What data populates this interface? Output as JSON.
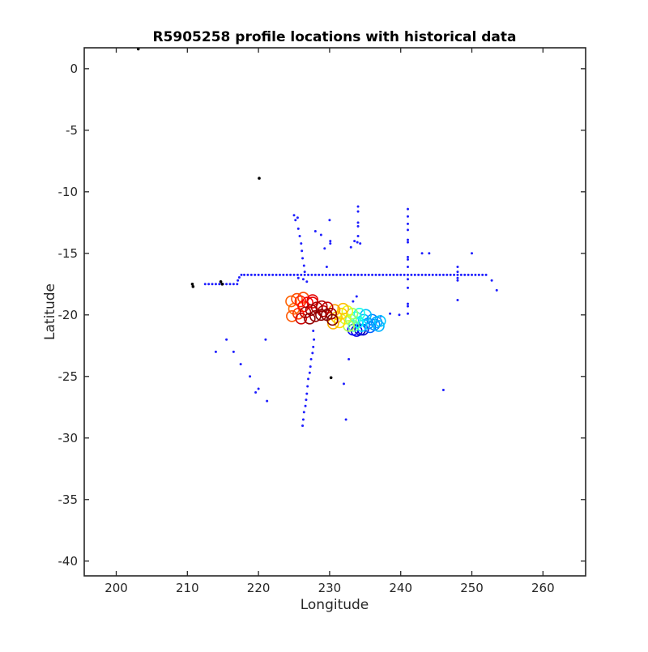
{
  "chart_data": {
    "type": "scatter",
    "title": "R5905258 profile locations with historical data",
    "xlabel": "Longitude",
    "ylabel": "Latitude",
    "xlim": [
      195.5,
      266
    ],
    "ylim": [
      -41.2,
      1.7
    ],
    "xticks": [
      200,
      210,
      220,
      230,
      240,
      250,
      260
    ],
    "yticks": [
      0,
      -5,
      -10,
      -15,
      -20,
      -25,
      -30,
      -35,
      -40
    ],
    "grid": false,
    "legend": "none",
    "series": [
      {
        "marker": "dot",
        "color": "#1f1fff",
        "points": [
          [
            212.5,
            -17.5
          ],
          [
            213,
            -17.5
          ],
          [
            213.5,
            -17.5
          ],
          [
            214,
            -17.5
          ],
          [
            214.5,
            -17.5
          ],
          [
            215,
            -17.5
          ],
          [
            215.5,
            -17.5
          ],
          [
            216,
            -17.5
          ],
          [
            216.5,
            -17.5
          ],
          [
            217,
            -17.5
          ],
          [
            217.1,
            -17.2
          ],
          [
            217.3,
            -16.95
          ],
          [
            217.6,
            -16.75
          ],
          [
            218,
            -16.75
          ],
          [
            218.5,
            -16.75
          ],
          [
            219,
            -16.75
          ],
          [
            219.5,
            -16.75
          ],
          [
            220,
            -16.75
          ],
          [
            220.5,
            -16.75
          ],
          [
            221,
            -16.75
          ],
          [
            221.5,
            -16.75
          ],
          [
            222,
            -16.75
          ],
          [
            222.5,
            -16.75
          ],
          [
            223,
            -16.75
          ],
          [
            223.5,
            -16.75
          ],
          [
            224,
            -16.75
          ],
          [
            224.5,
            -16.75
          ],
          [
            225,
            -16.75
          ],
          [
            225.5,
            -16.75
          ],
          [
            226,
            -16.75
          ],
          [
            226.5,
            -16.75
          ],
          [
            227,
            -16.75
          ],
          [
            227.5,
            -16.75
          ],
          [
            228,
            -16.75
          ],
          [
            228.5,
            -16.75
          ],
          [
            229,
            -16.75
          ],
          [
            229.5,
            -16.75
          ],
          [
            230,
            -16.75
          ],
          [
            230.5,
            -16.75
          ],
          [
            231,
            -16.75
          ],
          [
            231.5,
            -16.75
          ],
          [
            232,
            -16.75
          ],
          [
            232.5,
            -16.75
          ],
          [
            233,
            -16.75
          ],
          [
            233.5,
            -16.75
          ],
          [
            234,
            -16.75
          ],
          [
            234.5,
            -16.75
          ],
          [
            235,
            -16.75
          ],
          [
            235.5,
            -16.75
          ],
          [
            236,
            -16.75
          ],
          [
            236.5,
            -16.75
          ],
          [
            237,
            -16.75
          ],
          [
            237.5,
            -16.75
          ],
          [
            238,
            -16.75
          ],
          [
            238.5,
            -16.75
          ],
          [
            239,
            -16.75
          ],
          [
            239.5,
            -16.75
          ],
          [
            240,
            -16.75
          ],
          [
            240.5,
            -16.75
          ],
          [
            241,
            -16.75
          ],
          [
            241.5,
            -16.75
          ],
          [
            242,
            -16.75
          ],
          [
            242.5,
            -16.75
          ],
          [
            243,
            -16.75
          ],
          [
            243.5,
            -16.75
          ],
          [
            244,
            -16.75
          ],
          [
            244.5,
            -16.75
          ],
          [
            245,
            -16.75
          ],
          [
            245.5,
            -16.75
          ],
          [
            246,
            -16.75
          ],
          [
            246.5,
            -16.75
          ],
          [
            247,
            -16.75
          ],
          [
            247.5,
            -16.75
          ],
          [
            248,
            -16.75
          ],
          [
            248.5,
            -16.75
          ],
          [
            249,
            -16.75
          ],
          [
            249.5,
            -16.75
          ],
          [
            250,
            -16.75
          ],
          [
            250.5,
            -16.75
          ],
          [
            251,
            -16.75
          ],
          [
            251.5,
            -16.75
          ],
          [
            252,
            -16.75
          ],
          [
            225,
            -11.9
          ],
          [
            225.2,
            -12.3
          ],
          [
            225.5,
            -12.1
          ],
          [
            225.6,
            -13
          ],
          [
            225.8,
            -13.6
          ],
          [
            226,
            -14.2
          ],
          [
            226.1,
            -14.8
          ],
          [
            226.2,
            -15.4
          ],
          [
            226.4,
            -16
          ],
          [
            226.5,
            -16.5
          ],
          [
            226.8,
            -17.3
          ],
          [
            226.3,
            -17.1
          ],
          [
            225.6,
            -17.0
          ],
          [
            227.7,
            -21.3
          ],
          [
            227.8,
            -22.0
          ],
          [
            227.7,
            -22.6
          ],
          [
            227.6,
            -23.1
          ],
          [
            227.4,
            -23.6
          ],
          [
            227.3,
            -24.2
          ],
          [
            227.2,
            -24.7
          ],
          [
            227.0,
            -25.2
          ],
          [
            226.9,
            -25.8
          ],
          [
            226.8,
            -26.4
          ],
          [
            226.7,
            -26.9
          ],
          [
            226.6,
            -27.4
          ],
          [
            226.4,
            -27.9
          ],
          [
            226.3,
            -28.5
          ],
          [
            226.2,
            -29.0
          ],
          [
            241,
            -11.4
          ],
          [
            241,
            -12
          ],
          [
            241,
            -12.6
          ],
          [
            241,
            -13.1
          ],
          [
            241,
            -13.9
          ],
          [
            241,
            -14.1
          ],
          [
            241,
            -15.3
          ],
          [
            241,
            -15.5
          ],
          [
            241,
            -16.1
          ],
          [
            241,
            -17.1
          ],
          [
            241,
            -17.8
          ],
          [
            241,
            -19.1
          ],
          [
            241,
            -19.3
          ],
          [
            241,
            -19.9
          ],
          [
            239.8,
            -20.0
          ],
          [
            238.5,
            -19.9
          ],
          [
            237.2,
            -20.1
          ],
          [
            234,
            -11.2
          ],
          [
            234,
            -11.6
          ],
          [
            234,
            -12.5
          ],
          [
            234,
            -12.8
          ],
          [
            234,
            -13.6
          ],
          [
            233.9,
            -14.1
          ],
          [
            233.5,
            -14
          ],
          [
            234.3,
            -14.2
          ],
          [
            233,
            -14.5
          ],
          [
            233.8,
            -18.5
          ],
          [
            233.3,
            -18.9
          ],
          [
            230,
            -12.3
          ],
          [
            228,
            -13.2
          ],
          [
            228.8,
            -13.5
          ],
          [
            229.3,
            -14.6
          ],
          [
            229.6,
            -16.1
          ],
          [
            230.1,
            -14.0
          ],
          [
            230.1,
            -14.2
          ],
          [
            243,
            -15.0
          ],
          [
            244,
            -15.0
          ],
          [
            250,
            -15.0
          ],
          [
            248,
            -16.1
          ],
          [
            248,
            -16.5
          ],
          [
            248,
            -17.0
          ],
          [
            248,
            -17.2
          ],
          [
            248,
            -18.8
          ],
          [
            252.8,
            -17.2
          ],
          [
            253.5,
            -18.0
          ],
          [
            246,
            -26.1
          ],
          [
            214,
            -23.0
          ],
          [
            215.5,
            -22.0
          ],
          [
            216.5,
            -23.0
          ],
          [
            217.5,
            -24.0
          ],
          [
            218.8,
            -25.0
          ],
          [
            219.6,
            -26.3
          ],
          [
            220.0,
            -26.0
          ],
          [
            221.2,
            -27.0
          ],
          [
            221.0,
            -22.0
          ],
          [
            232.0,
            -25.6
          ],
          [
            232.7,
            -23.6
          ],
          [
            232.3,
            -28.5
          ]
        ]
      },
      {
        "marker": "dot",
        "color": "#000000",
        "points": [
          [
            203.1,
            1.6
          ],
          [
            220.1,
            -8.9
          ],
          [
            210.7,
            -17.5
          ],
          [
            210.8,
            -17.7
          ],
          [
            214.7,
            -17.3
          ],
          [
            214.9,
            -17.5
          ],
          [
            230.2,
            -25.1
          ]
        ]
      },
      {
        "marker": "open-circle",
        "colormap": "jet",
        "colormap_range": [
          0,
          1
        ],
        "points": [
          [
            224.6,
            -18.9,
            0.78
          ],
          [
            225.4,
            -18.7,
            0.8
          ],
          [
            226.3,
            -18.6,
            0.8
          ],
          [
            225.0,
            -19.5,
            0.77
          ],
          [
            224.7,
            -20.1,
            0.79
          ],
          [
            225.6,
            -19.9,
            0.82
          ],
          [
            226.3,
            -19.3,
            0.86
          ],
          [
            226.9,
            -19.0,
            0.88
          ],
          [
            227.6,
            -19.0,
            0.9
          ],
          [
            226.0,
            -20.3,
            0.92
          ],
          [
            226.6,
            -19.8,
            0.95
          ],
          [
            227.4,
            -19.6,
            0.97
          ],
          [
            228.2,
            -19.4,
            0.96
          ],
          [
            228.9,
            -19.3,
            0.95
          ],
          [
            229.7,
            -19.4,
            0.93
          ],
          [
            228.0,
            -20.1,
            0.98
          ],
          [
            228.8,
            -20.0,
            0.99
          ],
          [
            229.6,
            -20.0,
            0.99
          ],
          [
            230.2,
            -19.9,
            0.97
          ],
          [
            230.4,
            -20.4,
            1.0
          ],
          [
            227.2,
            -20.3,
            0.98
          ],
          [
            229.1,
            -19.7,
            0.94
          ],
          [
            225.9,
            -18.9,
            0.84
          ],
          [
            227.6,
            -18.8,
            0.9
          ],
          [
            230.7,
            -19.6,
            0.72
          ],
          [
            231.0,
            -20.2,
            0.68
          ],
          [
            231.4,
            -20.6,
            0.66
          ],
          [
            231.7,
            -19.9,
            0.67
          ],
          [
            231.9,
            -19.5,
            0.69
          ],
          [
            230.5,
            -20.7,
            0.7
          ],
          [
            232.2,
            -20.3,
            0.58
          ],
          [
            232.5,
            -19.7,
            0.6
          ],
          [
            232.7,
            -20.9,
            0.55
          ],
          [
            233.0,
            -20.4,
            0.5
          ],
          [
            233.2,
            -19.9,
            0.52
          ],
          [
            233.4,
            -20.9,
            0.46
          ],
          [
            233.7,
            -20.2,
            0.42
          ],
          [
            234.0,
            -20.6,
            0.38
          ],
          [
            234.2,
            -19.9,
            0.4
          ],
          [
            234.5,
            -20.9,
            0.33
          ],
          [
            234.8,
            -20.4,
            0.3
          ],
          [
            235.1,
            -20.0,
            0.31
          ],
          [
            235.4,
            -20.7,
            0.27
          ],
          [
            235.7,
            -21.0,
            0.22
          ],
          [
            236.0,
            -20.4,
            0.25
          ],
          [
            236.3,
            -20.8,
            0.26
          ],
          [
            236.6,
            -20.6,
            0.28
          ],
          [
            236.9,
            -20.9,
            0.3
          ],
          [
            237.1,
            -20.5,
            0.32
          ],
          [
            233.3,
            -21.2,
            0.12
          ],
          [
            233.8,
            -21.3,
            0.1
          ],
          [
            234.3,
            -21.2,
            0.05
          ],
          [
            234.7,
            -21.2,
            0.08
          ]
        ]
      }
    ]
  }
}
